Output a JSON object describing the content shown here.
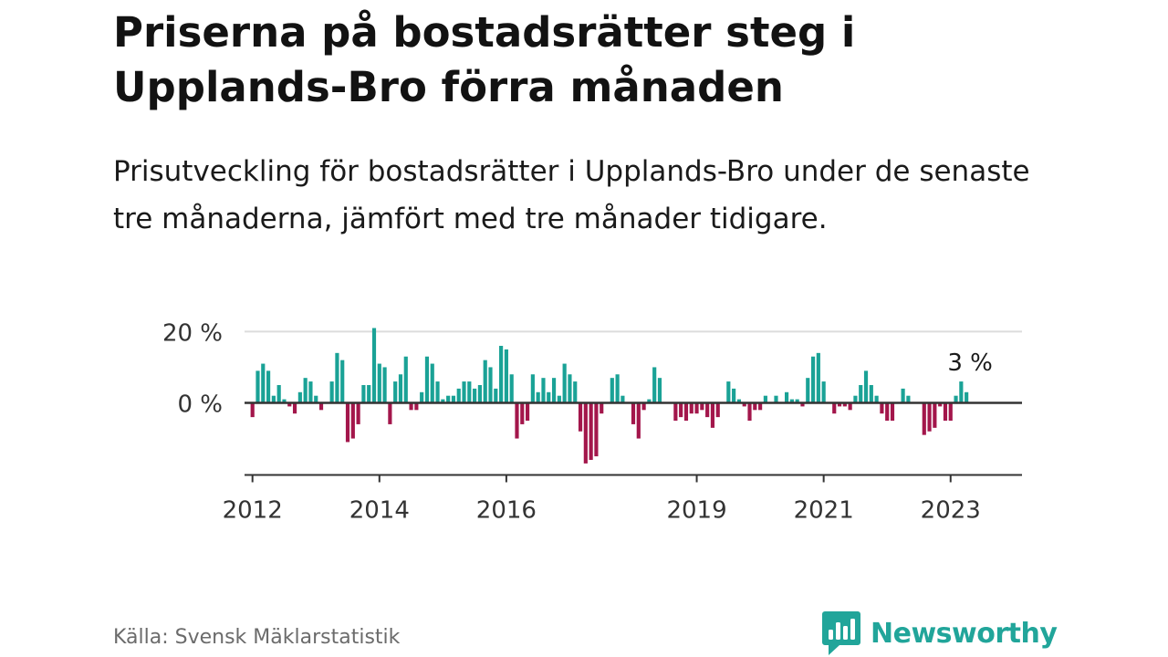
{
  "title": "Priserna på bostadsrätter steg i Upplands-Bro förra månaden",
  "subtitle": "Prisutveckling för bostadsrätter i Upplands-Bro under de senaste tre månaderna, jämfört med tre månader tidigare.",
  "source": "Källa: Svensk Mäklarstatistik",
  "brand": "Newsworthy",
  "colors": {
    "positive": "#1aa296",
    "negative": "#a3164b",
    "brand": "#21a59a",
    "axis": "#333333",
    "grid": "#dcdcdc"
  },
  "chart_data": {
    "type": "bar",
    "unit": "%",
    "start": "2012-01",
    "xlim": [
      "2011-12",
      "2024-03"
    ],
    "ylim": [
      -19,
      21
    ],
    "y_ticks": [
      {
        "value": 20,
        "label": "20 %"
      },
      {
        "value": 0,
        "label": "0 %"
      }
    ],
    "x_ticks": [
      {
        "date": "2012-01",
        "label": "2012"
      },
      {
        "date": "2014-01",
        "label": "2014"
      },
      {
        "date": "2016-01",
        "label": "2016"
      },
      {
        "date": "2019-01",
        "label": "2019"
      },
      {
        "date": "2021-01",
        "label": "2021"
      },
      {
        "date": "2023-01",
        "label": "2023"
      }
    ],
    "annotation": {
      "text": "3 %",
      "date": "2023-04",
      "value": 3
    },
    "values": [
      -4,
      9,
      11,
      9,
      2,
      5,
      1,
      -1,
      -3,
      3,
      7,
      6,
      2,
      -2,
      0,
      6,
      14,
      12,
      -11,
      -10,
      -6,
      5,
      5,
      21,
      11,
      10,
      -6,
      6,
      8,
      13,
      -2,
      -2,
      3,
      13,
      11,
      6,
      1,
      2,
      2,
      4,
      6,
      6,
      4,
      5,
      12,
      10,
      4,
      16,
      15,
      8,
      -10,
      -6,
      -5,
      8,
      3,
      7,
      3,
      7,
      2,
      11,
      8,
      6,
      -8,
      -17,
      -16,
      -15,
      -3,
      0,
      7,
      8,
      2,
      0,
      -6,
      -10,
      -2,
      1,
      10,
      7,
      0,
      0,
      -5,
      -4,
      -5,
      -3,
      -3,
      -2,
      -4,
      -7,
      -4,
      0,
      6,
      4,
      1,
      -1,
      -5,
      -2,
      -2,
      2,
      0,
      2,
      0,
      3,
      1,
      1,
      -1,
      7,
      13,
      14,
      6,
      0,
      -3,
      -1,
      -1,
      -2,
      2,
      5,
      9,
      5,
      2,
      -3,
      -5,
      -5,
      0,
      4,
      2,
      0,
      0,
      -9,
      -8,
      -7,
      -1,
      -5,
      -5,
      2,
      6,
      3
    ]
  }
}
